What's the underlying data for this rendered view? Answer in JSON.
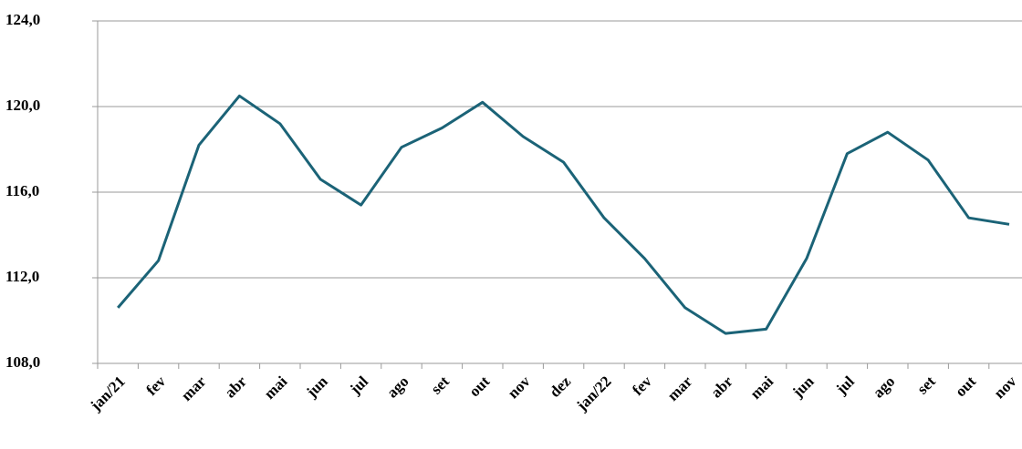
{
  "chart_data": {
    "type": "line",
    "categories": [
      "jan/21",
      "fev",
      "mar",
      "abr",
      "mai",
      "jun",
      "jul",
      "ago",
      "set",
      "out",
      "nov",
      "dez",
      "jan/22",
      "fev",
      "mar",
      "abr",
      "mai",
      "jun",
      "jul",
      "ago",
      "set",
      "out",
      "nov"
    ],
    "series": [
      {
        "color": "#1b6377",
        "values": [
          110.6,
          112.8,
          118.2,
          120.5,
          119.2,
          116.6,
          115.4,
          118.1,
          119.0,
          120.2,
          118.6,
          117.4,
          114.8,
          112.9,
          110.6,
          109.4,
          109.6,
          112.9,
          117.8,
          118.8,
          117.5,
          114.8,
          114.5
        ]
      }
    ],
    "ylim": [
      108,
      124
    ],
    "yticks": [
      {
        "value": 108,
        "label": "108,0"
      },
      {
        "value": 112,
        "label": "112,0"
      },
      {
        "value": 116,
        "label": "116,0"
      },
      {
        "value": 120,
        "label": "120,0"
      },
      {
        "value": 124,
        "label": "124,0"
      }
    ],
    "grid": true
  }
}
